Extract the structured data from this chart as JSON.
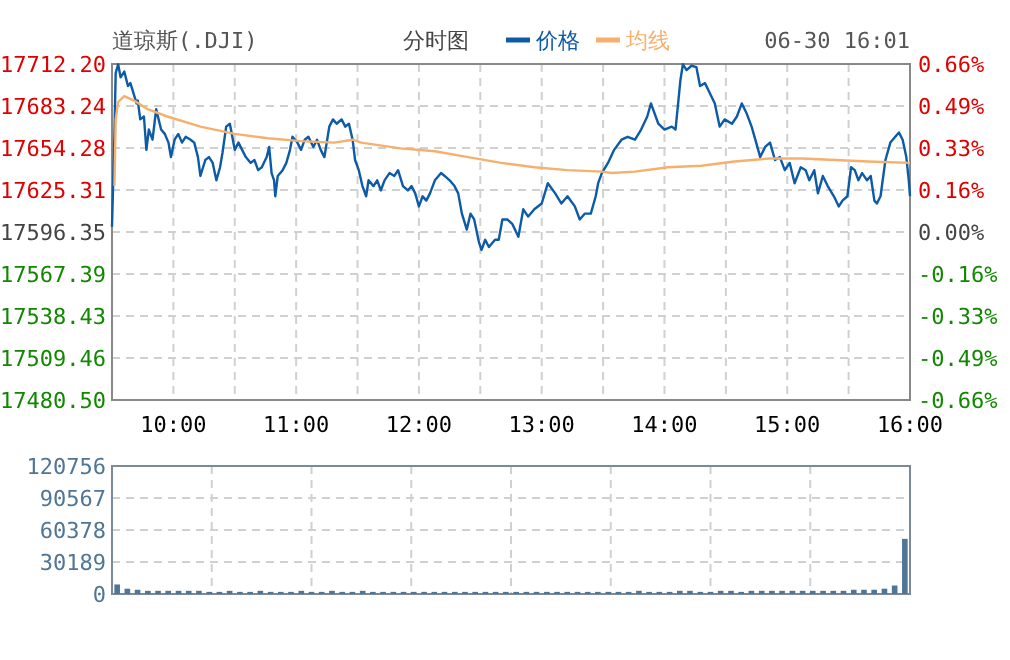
{
  "chart_data": [
    {
      "type": "line",
      "title": "道琼斯(.DJI)",
      "subtitle": "分时图",
      "annotations": [
        "06-30 16:01"
      ],
      "legend": "top",
      "grid": true,
      "xlim": [
        9.5,
        16
      ],
      "xticks": [
        {
          "value": 9.5,
          "label": null
        },
        {
          "value": 10,
          "label": "10:00"
        },
        {
          "value": 10.5,
          "label": null
        },
        {
          "value": 11,
          "label": "11:00"
        },
        {
          "value": 11.5,
          "label": null
        },
        {
          "value": 12,
          "label": "12:00"
        },
        {
          "value": 12.5,
          "label": null
        },
        {
          "value": 13,
          "label": "13:00"
        },
        {
          "value": 13.5,
          "label": null
        },
        {
          "value": 14,
          "label": "14:00"
        },
        {
          "value": 14.5,
          "label": null
        },
        {
          "value": 15,
          "label": "15:00"
        },
        {
          "value": 15.5,
          "label": null
        },
        {
          "value": 16,
          "label": "16:00"
        }
      ],
      "ylim": [
        17480.5,
        17712.2
      ],
      "yticks": [
        {
          "value": 17480.5,
          "label": "17480.50"
        },
        {
          "value": 17509.46,
          "label": "17509.46"
        },
        {
          "value": 17538.43,
          "label": "17538.43"
        },
        {
          "value": 17567.39,
          "label": "17567.39"
        },
        {
          "value": 17596.35,
          "label": "17596.35"
        },
        {
          "value": 17625.31,
          "label": "17625.31"
        },
        {
          "value": 17654.28,
          "label": "17654.28"
        },
        {
          "value": 17683.24,
          "label": "17683.24"
        },
        {
          "value": 17712.2,
          "label": "17712.20"
        }
      ],
      "y2lim": [
        -0.66,
        0.66
      ],
      "y2ticks": [
        {
          "value": -0.66,
          "label": "-0.66%"
        },
        {
          "value": -0.495,
          "label": "-0.49%"
        },
        {
          "value": -0.33,
          "label": "-0.33%"
        },
        {
          "value": -0.165,
          "label": "-0.16%"
        },
        {
          "value": 0,
          "label": "0.00%"
        },
        {
          "value": 0.165,
          "label": "0.16%"
        },
        {
          "value": 0.33,
          "label": "0.33%"
        },
        {
          "value": 0.495,
          "label": "0.49%"
        },
        {
          "value": 0.66,
          "label": "0.66%"
        }
      ],
      "series": [
        {
          "name": "价格",
          "color": "#0d5aa7",
          "x": [
            9.5,
            9.52,
            9.53,
            9.55,
            9.57,
            9.6,
            9.63,
            9.65,
            9.7,
            9.71,
            9.73,
            9.76,
            9.78,
            9.8,
            9.83,
            9.86,
            9.9,
            9.93,
            9.96,
            9.98,
            10.01,
            10.04,
            10.07,
            10.1,
            10.14,
            10.17,
            10.2,
            10.22,
            10.26,
            10.29,
            10.32,
            10.35,
            10.38,
            10.4,
            10.43,
            10.46,
            10.5,
            10.53,
            10.56,
            10.59,
            10.63,
            10.66,
            10.69,
            10.72,
            10.76,
            10.78,
            10.8,
            10.82,
            10.83,
            10.85,
            10.89,
            10.92,
            10.95,
            10.97,
            11.01,
            11.04,
            11.07,
            11.1,
            11.14,
            11.17,
            11.2,
            11.23,
            11.27,
            11.3,
            11.33,
            11.37,
            11.4,
            11.43,
            11.46,
            11.48,
            11.51,
            11.54,
            11.57,
            11.59,
            11.63,
            11.66,
            11.69,
            11.72,
            11.76,
            11.8,
            11.83,
            11.87,
            11.91,
            11.94,
            11.97,
            12,
            12.03,
            12.06,
            12.09,
            12.13,
            12.16,
            12.18,
            12.21,
            12.25,
            12.29,
            12.32,
            12.35,
            12.39,
            12.42,
            12.45,
            12.49,
            12.51,
            12.54,
            12.57,
            12.62,
            12.65,
            12.68,
            12.72,
            12.76,
            12.81,
            12.85,
            12.89,
            12.94,
            13,
            13.05,
            13.11,
            13.16,
            13.21,
            13.27,
            13.31,
            13.35,
            13.4,
            13.44,
            13.46,
            13.49,
            13.54,
            13.59,
            13.65,
            13.7,
            13.76,
            13.81,
            13.86,
            13.89,
            13.95,
            14,
            14.06,
            14.09,
            14.13,
            14.15,
            14.18,
            14.22,
            14.26,
            14.29,
            14.33,
            14.37,
            14.41,
            14.45,
            14.49,
            14.55,
            14.59,
            14.63,
            14.67,
            14.71,
            14.74,
            14.78,
            14.82,
            14.86,
            14.9,
            14.94,
            14.98,
            15.02,
            15.06,
            15.11,
            15.15,
            15.18,
            15.22,
            15.25,
            15.29,
            15.33,
            15.38,
            15.42,
            15.45,
            15.49,
            15.52,
            15.55,
            15.58,
            15.61,
            15.65,
            15.68,
            15.71,
            15.73,
            15.76,
            15.8,
            15.84,
            15.88,
            15.91,
            15.94,
            15.97,
            15.99,
            16
          ],
          "values": [
            17600,
            17664,
            17706,
            17712,
            17703,
            17707,
            17697,
            17699,
            17685,
            17687,
            17674,
            17676,
            17653,
            17667,
            17660,
            17681,
            17667,
            17664,
            17658,
            17648,
            17660,
            17664,
            17658,
            17662,
            17660,
            17658,
            17648,
            17635,
            17646,
            17648,
            17644,
            17632,
            17641,
            17651,
            17669,
            17671,
            17653,
            17658,
            17653,
            17648,
            17644,
            17646,
            17639,
            17641,
            17648,
            17655,
            17637,
            17632,
            17621,
            17635,
            17639,
            17644,
            17653,
            17662,
            17658,
            17653,
            17660,
            17662,
            17655,
            17660,
            17653,
            17648,
            17669,
            17674,
            17671,
            17674,
            17669,
            17671,
            17660,
            17646,
            17639,
            17628,
            17621,
            17632,
            17628,
            17632,
            17625,
            17632,
            17637,
            17635,
            17639,
            17628,
            17625,
            17628,
            17623,
            17614,
            17621,
            17618,
            17623,
            17632,
            17635,
            17637,
            17635,
            17632,
            17628,
            17623,
            17609,
            17598,
            17609,
            17605,
            17589,
            17584,
            17591,
            17586,
            17591,
            17591,
            17605,
            17605,
            17602,
            17593,
            17612,
            17607,
            17612,
            17616,
            17630,
            17623,
            17616,
            17621,
            17614,
            17605,
            17609,
            17609,
            17621,
            17630,
            17637,
            17644,
            17653,
            17660,
            17662,
            17660,
            17667,
            17676,
            17685,
            17671,
            17667,
            17669,
            17667,
            17701,
            17712,
            17708,
            17711,
            17710,
            17697,
            17699,
            17692,
            17685,
            17669,
            17674,
            17671,
            17676,
            17685,
            17678,
            17669,
            17660,
            17648,
            17655,
            17658,
            17646,
            17648,
            17639,
            17644,
            17630,
            17641,
            17639,
            17632,
            17639,
            17623,
            17635,
            17628,
            17621,
            17614,
            17618,
            17621,
            17641,
            17639,
            17632,
            17637,
            17632,
            17635,
            17618,
            17616,
            17621,
            17646,
            17658,
            17662,
            17665,
            17660,
            17648,
            17632,
            17621
          ]
        },
        {
          "name": "均线",
          "color": "#f5b06e",
          "x": [
            9.52,
            9.53,
            9.55,
            9.6,
            9.68,
            9.79,
            9.95,
            10.22,
            10.5,
            10.77,
            11.04,
            11.31,
            11.46,
            11.53,
            11.85,
            12.13,
            12.4,
            12.67,
            12.94,
            13.21,
            13.49,
            13.57,
            13.76,
            14.03,
            14.3,
            14.57,
            14.85,
            15.12,
            15.39,
            15.66,
            16
          ],
          "values": [
            17628,
            17674,
            17686,
            17690,
            17687,
            17681,
            17676,
            17669,
            17664,
            17661,
            17659,
            17658,
            17660,
            17658,
            17654,
            17652,
            17648,
            17644,
            17641,
            17639,
            17638,
            17637,
            17638,
            17641,
            17642,
            17645,
            17647,
            17647,
            17646,
            17645,
            17644
          ]
        }
      ]
    },
    {
      "type": "bar",
      "color": "#4f7597",
      "grid": true,
      "tick_labels": "y",
      "xlim": [
        9.5,
        16
      ],
      "xticks": [
        {
          "value": 9.5,
          "label": null
        },
        {
          "value": 10.3125,
          "label": null
        },
        {
          "value": 11.125,
          "label": null
        },
        {
          "value": 11.9375,
          "label": null
        },
        {
          "value": 12.75,
          "label": null
        },
        {
          "value": 13.5625,
          "label": null
        },
        {
          "value": 14.375,
          "label": null
        },
        {
          "value": 15.1875,
          "label": null
        },
        {
          "value": 16,
          "label": null
        }
      ],
      "ylim": [
        0,
        120756
      ],
      "yticks": [
        0,
        30189,
        60378,
        90567,
        120756
      ],
      "x": [
        9.542,
        9.625,
        9.708,
        9.792,
        9.875,
        9.958,
        10.042,
        10.125,
        10.208,
        10.292,
        10.375,
        10.458,
        10.542,
        10.625,
        10.708,
        10.792,
        10.875,
        10.958,
        11.042,
        11.125,
        11.208,
        11.292,
        11.375,
        11.458,
        11.542,
        11.625,
        11.708,
        11.792,
        11.875,
        11.958,
        12.042,
        12.125,
        12.208,
        12.292,
        12.375,
        12.458,
        12.542,
        12.625,
        12.708,
        12.792,
        12.875,
        12.958,
        13.042,
        13.125,
        13.208,
        13.292,
        13.375,
        13.458,
        13.542,
        13.625,
        13.708,
        13.792,
        13.875,
        13.958,
        14.042,
        14.125,
        14.208,
        14.292,
        14.375,
        14.458,
        14.542,
        14.625,
        14.708,
        14.792,
        14.875,
        14.958,
        15.042,
        15.125,
        15.208,
        15.292,
        15.375,
        15.458,
        15.542,
        15.625,
        15.708,
        15.792,
        15.875,
        15.958
      ],
      "values": [
        9000,
        5000,
        4000,
        3000,
        3000,
        3000,
        3000,
        3000,
        3000,
        2000,
        2000,
        3000,
        2000,
        2000,
        3000,
        2000,
        2000,
        2000,
        3000,
        2000,
        2000,
        3000,
        2000,
        2000,
        3000,
        2000,
        2000,
        2000,
        2000,
        2000,
        2000,
        2000,
        2000,
        2000,
        2000,
        2000,
        2000,
        2000,
        2000,
        2000,
        2000,
        2000,
        2000,
        2000,
        2000,
        2000,
        2000,
        2000,
        2000,
        2000,
        2000,
        3000,
        2000,
        2000,
        2000,
        3000,
        3000,
        2000,
        2000,
        3000,
        3000,
        2000,
        3000,
        3000,
        3000,
        3000,
        3000,
        3000,
        3000,
        3000,
        3000,
        3000,
        4000,
        4000,
        4000,
        5000,
        8000,
        52000
      ]
    }
  ]
}
